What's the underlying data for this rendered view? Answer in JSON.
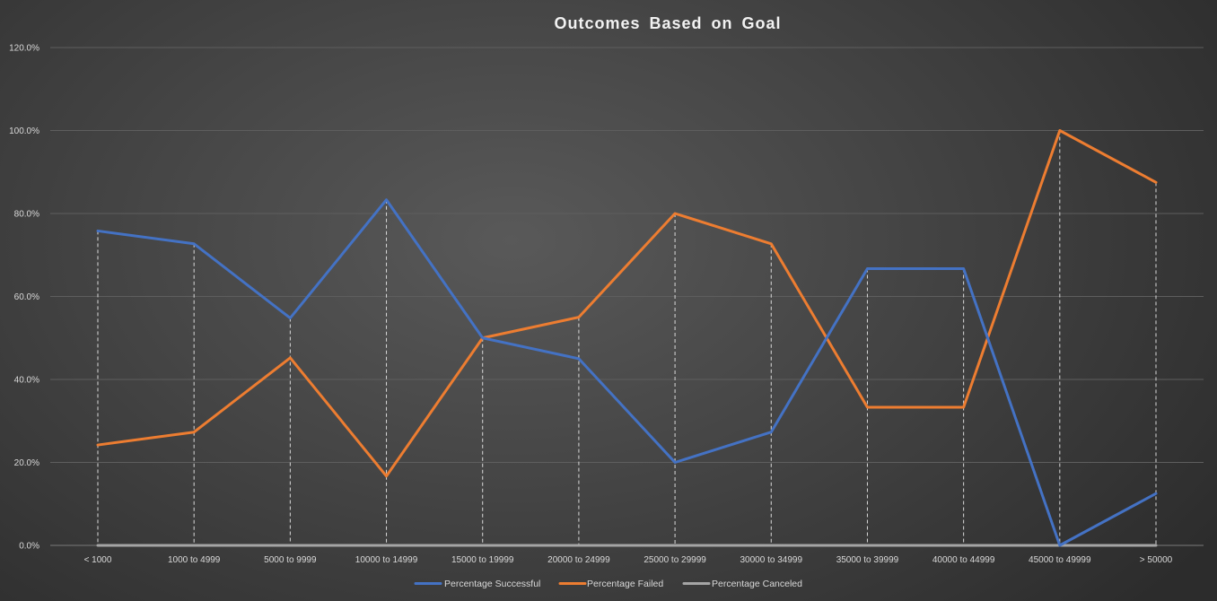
{
  "chart_data": {
    "type": "line",
    "title": "Outcomes Based on Goal",
    "xlabel": "",
    "ylabel": "",
    "categories": [
      "< 1000",
      "1000 to 4999",
      "5000 to 9999",
      "10000 to 14999",
      "15000 to 19999",
      "20000 to 24999",
      "25000 to 29999",
      "30000 to 34999",
      "35000 to 39999",
      "40000 to 44999",
      "45000 to 49999",
      "> 50000"
    ],
    "y_ticks": [
      "0.0%",
      "20.0%",
      "40.0%",
      "60.0%",
      "80.0%",
      "100.0%",
      "120.0%"
    ],
    "ylim": [
      0,
      120
    ],
    "grid": true,
    "drop_lines": true,
    "legend_position": "bottom",
    "series": [
      {
        "name": "Percentage Successful",
        "color": "#4472c4",
        "values": [
          75.8,
          72.7,
          54.8,
          83.3,
          50.0,
          45.0,
          20.0,
          27.3,
          66.7,
          66.7,
          0.0,
          12.5
        ]
      },
      {
        "name": "Percentage Failed",
        "color": "#ed7d31",
        "values": [
          24.2,
          27.3,
          45.2,
          16.7,
          50.0,
          55.0,
          80.0,
          72.7,
          33.3,
          33.3,
          100.0,
          87.5
        ]
      },
      {
        "name": "Percentage Canceled",
        "color": "#a5a5a5",
        "values": [
          0,
          0,
          0,
          0,
          0,
          0,
          0,
          0,
          0,
          0,
          0,
          0
        ]
      }
    ]
  }
}
